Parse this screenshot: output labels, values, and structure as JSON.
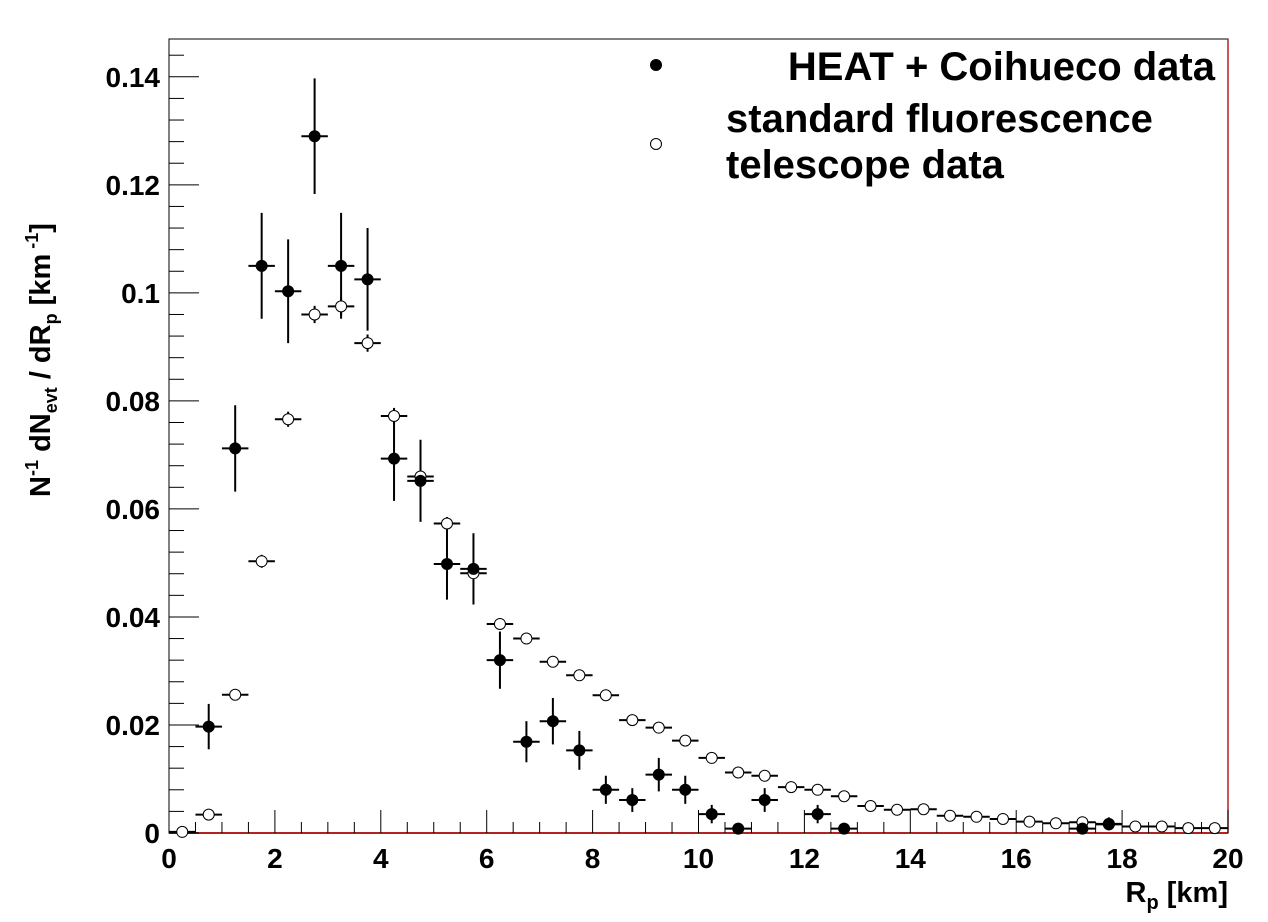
{
  "chart_data": {
    "type": "scatter",
    "title": "",
    "xlabel": "R",
    "xlabel_sub": "p",
    "xlabel_unit": " [km]",
    "ylabel_parts": {
      "n": "N",
      "n_sup": "-1",
      "dn": " dN",
      "dn_sub": "evt",
      "mid": " / dR",
      "r_sub": "p",
      "unit": "  [km",
      "unit_sup": " -1",
      "close": "]"
    },
    "xlim": [
      0,
      20
    ],
    "ylim": [
      0,
      0.147
    ],
    "xticks": [
      0,
      2,
      4,
      6,
      8,
      10,
      12,
      14,
      16,
      18,
      20
    ],
    "xtick_labels": [
      "0",
      "2",
      "4",
      "6",
      "8",
      "10",
      "12",
      "14",
      "16",
      "18",
      "20"
    ],
    "yticks": [
      0,
      0.02,
      0.04,
      0.06,
      0.08,
      0.1,
      0.12,
      0.14
    ],
    "ytick_labels": [
      "0",
      "0.02",
      "0.04",
      "0.06",
      "0.08",
      "0.1",
      "0.12",
      "0.14"
    ],
    "grid": false,
    "legend": {
      "position": "top-right",
      "entries": [
        {
          "lines": [
            "HEAT + Coihueco data"
          ],
          "marker": "filled-circle"
        },
        {
          "lines": [
            "standard fluorescence",
            "telescope data"
          ],
          "marker": "open-circle"
        }
      ]
    },
    "series": [
      {
        "marker": "open",
        "color": "#000000",
        "x": [
          0.25,
          0.75,
          1.25,
          1.75,
          2.25,
          2.75,
          3.25,
          3.75,
          4.25,
          4.75,
          5.25,
          5.75,
          6.25,
          6.75,
          7.25,
          7.75,
          8.25,
          8.75,
          9.25,
          9.75,
          10.25,
          10.75,
          11.25,
          11.75,
          12.25,
          12.75,
          13.25,
          13.75,
          14.25,
          14.75,
          15.25,
          15.75,
          16.25,
          16.75,
          17.25,
          17.75,
          18.25,
          18.75,
          19.25,
          19.75
        ],
        "y": [
          0.0002,
          0.0034,
          0.0256,
          0.0503,
          0.0766,
          0.096,
          0.0975,
          0.0907,
          0.0772,
          0.066,
          0.0573,
          0.0481,
          0.0387,
          0.036,
          0.0317,
          0.0292,
          0.0255,
          0.0209,
          0.0195,
          0.0171,
          0.0139,
          0.0112,
          0.0106,
          0.0085,
          0.008,
          0.0068,
          0.005,
          0.0043,
          0.0044,
          0.0032,
          0.003,
          0.0026,
          0.0021,
          0.0018,
          0.002,
          0.0016,
          0.0012,
          0.0012,
          0.0009,
          0.0009
        ],
        "yerr": [
          0.0002,
          0.0004,
          0.0008,
          0.0012,
          0.0014,
          0.0016,
          0.0017,
          0.0016,
          0.0015,
          0.0013,
          0.0012,
          0.001,
          0.0009,
          0.0008,
          0.0007,
          0.0006,
          0.0006,
          0.0005,
          0.0005,
          0.0005,
          0.0004,
          0.0004,
          0.0004,
          0.0003,
          0.0003,
          0.0003,
          0.0003,
          0.0002,
          0.0002,
          0.0002,
          0.0002,
          0.0002,
          0.0002,
          0.0002,
          0.0002,
          0.0002,
          0.0002,
          0.0002,
          0.0002,
          0.0002
        ]
      },
      {
        "marker": "filled",
        "color": "#000000",
        "x": [
          0.75,
          1.25,
          1.75,
          2.25,
          2.75,
          3.25,
          3.75,
          4.25,
          4.75,
          5.25,
          5.75,
          6.25,
          6.75,
          7.25,
          7.75,
          8.25,
          8.75,
          9.25,
          9.75,
          10.25,
          10.75,
          11.25,
          12.25,
          12.75,
          17.25,
          17.75
        ],
        "y": [
          0.0197,
          0.0712,
          0.105,
          0.1003,
          0.129,
          0.105,
          0.1025,
          0.0693,
          0.0652,
          0.0498,
          0.0489,
          0.032,
          0.0169,
          0.0207,
          0.0153,
          0.008,
          0.0061,
          0.0108,
          0.008,
          0.0035,
          0.0008,
          0.0061,
          0.0035,
          0.0008,
          0.0008,
          0.0017
        ],
        "yerr": [
          0.0042,
          0.008,
          0.0098,
          0.0096,
          0.0107,
          0.0098,
          0.0095,
          0.0078,
          0.0076,
          0.0066,
          0.0066,
          0.0053,
          0.0038,
          0.0043,
          0.0036,
          0.0026,
          0.0022,
          0.0031,
          0.0026,
          0.0017,
          0.0008,
          0.0022,
          0.0017,
          0.0008,
          0.0008,
          0.0012
        ]
      }
    ]
  }
}
